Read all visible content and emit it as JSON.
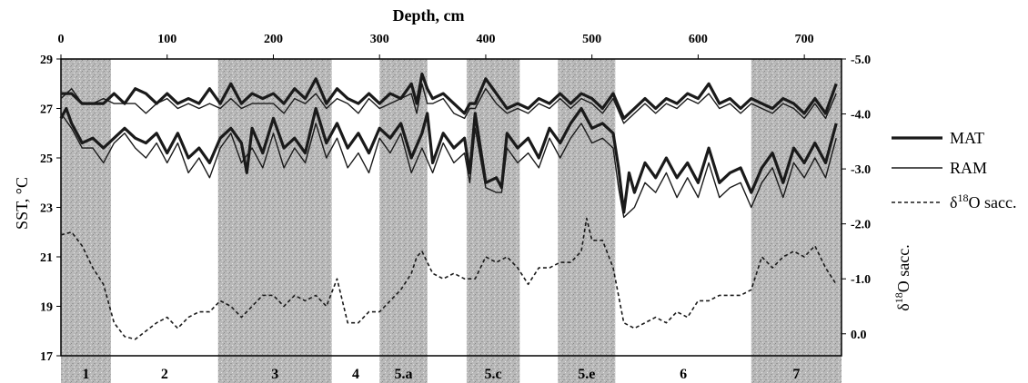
{
  "chart_data": {
    "type": "line",
    "title": "Depth, cm",
    "xlabel": "Depth, cm",
    "ylabel": "SST, °C",
    "ylabel_right": "δ18O sacc.",
    "xlim": [
      0,
      735
    ],
    "ylim": [
      17,
      29
    ],
    "ylim_right": [
      0.4,
      -5.0
    ],
    "x_ticks": [
      "0",
      "100",
      "200",
      "300",
      "400",
      "500",
      "600",
      "700"
    ],
    "y_ticks": [
      "17",
      "19",
      "21",
      "23",
      "25",
      "27",
      "29"
    ],
    "y_right_ticks": [
      "-5.0",
      "-4.0",
      "-3.0",
      "-2.0",
      "-1.0",
      "0.0"
    ],
    "legend": {
      "placement": "right",
      "entries": [
        "MAT",
        "RAM",
        "δ18O sacc."
      ]
    },
    "stages": [
      {
        "label": "1",
        "start": 0,
        "end": 47,
        "shaded": true
      },
      {
        "label": "2",
        "start": 47,
        "end": 148,
        "shaded": false
      },
      {
        "label": "3",
        "start": 148,
        "end": 255,
        "shaded": true
      },
      {
        "label": "4",
        "start": 255,
        "end": 300,
        "shaded": false
      },
      {
        "label": "5.a",
        "start": 300,
        "end": 345,
        "shaded": true
      },
      {
        "label": "5.c",
        "start": 382,
        "end": 432,
        "shaded": true
      },
      {
        "label": "5.e",
        "start": 468,
        "end": 522,
        "shaded": true
      },
      {
        "label": "6",
        "start": 522,
        "end": 650,
        "shaded": false
      },
      {
        "label": "7",
        "start": 650,
        "end": 735,
        "shaded": true
      }
    ],
    "series": [
      {
        "name": "MAT",
        "axis": "left",
        "style": "thick",
        "x": [
          0,
          10,
          20,
          30,
          40,
          50,
          60,
          70,
          80,
          90,
          100,
          110,
          120,
          130,
          140,
          150,
          160,
          170,
          180,
          190,
          200,
          210,
          220,
          230,
          240,
          250,
          260,
          270,
          280,
          290,
          300,
          310,
          320,
          330,
          335,
          340,
          345,
          350,
          360,
          370,
          380,
          385,
          390,
          400,
          410,
          420,
          430,
          440,
          450,
          460,
          470,
          480,
          490,
          500,
          510,
          520,
          530,
          540,
          550,
          560,
          570,
          580,
          590,
          600,
          610,
          620,
          630,
          640,
          650,
          660,
          670,
          680,
          690,
          700,
          710,
          720,
          730
        ],
        "y": [
          27.6,
          27.6,
          27.2,
          27.2,
          27.2,
          27.6,
          27.2,
          27.8,
          27.6,
          27.2,
          27.6,
          27.2,
          27.4,
          27.2,
          27.8,
          27.2,
          28.0,
          27.2,
          27.6,
          27.4,
          27.6,
          27.2,
          27.8,
          27.4,
          28.2,
          27.2,
          27.8,
          27.4,
          27.2,
          27.6,
          27.2,
          27.6,
          27.4,
          28.0,
          27.2,
          28.4,
          27.8,
          27.4,
          27.6,
          27.2,
          26.8,
          27.2,
          27.2,
          28.2,
          27.6,
          27.0,
          27.2,
          27.0,
          27.4,
          27.2,
          27.6,
          27.2,
          27.6,
          27.4,
          27.0,
          27.6,
          26.6,
          27.0,
          27.4,
          27.0,
          27.4,
          27.2,
          27.6,
          27.4,
          28.0,
          27.2,
          27.4,
          27.0,
          27.4,
          27.2,
          27.0,
          27.4,
          27.2,
          26.8,
          27.4,
          26.8,
          28.0
        ]
      },
      {
        "name": "RAM",
        "axis": "left",
        "style": "thin",
        "x": [
          0,
          10,
          20,
          30,
          40,
          50,
          60,
          70,
          80,
          90,
          100,
          110,
          120,
          130,
          140,
          150,
          160,
          170,
          180,
          190,
          200,
          210,
          220,
          230,
          240,
          250,
          260,
          270,
          280,
          290,
          300,
          310,
          320,
          330,
          335,
          340,
          345,
          350,
          360,
          370,
          380,
          385,
          390,
          400,
          410,
          420,
          430,
          440,
          450,
          460,
          470,
          480,
          490,
          500,
          510,
          520,
          530,
          540,
          550,
          560,
          570,
          580,
          590,
          600,
          610,
          620,
          630,
          640,
          650,
          660,
          670,
          680,
          690,
          700,
          710,
          720,
          730
        ],
        "y": [
          27.4,
          27.8,
          27.2,
          27.2,
          27.4,
          27.2,
          27.2,
          27.2,
          26.8,
          27.2,
          27.4,
          27.0,
          27.2,
          27.0,
          27.2,
          27.0,
          27.4,
          27.0,
          27.2,
          27.2,
          27.2,
          26.8,
          27.4,
          27.2,
          27.6,
          27.0,
          27.4,
          27.2,
          26.8,
          27.4,
          27.0,
          27.2,
          27.4,
          27.6,
          26.8,
          28.0,
          27.2,
          27.2,
          27.4,
          26.8,
          26.6,
          27.0,
          27.0,
          27.8,
          27.2,
          26.8,
          27.0,
          26.8,
          27.2,
          27.0,
          27.4,
          27.0,
          27.4,
          27.2,
          26.8,
          27.4,
          26.4,
          26.8,
          27.2,
          26.8,
          27.2,
          27.0,
          27.4,
          27.2,
          27.6,
          27.0,
          27.2,
          26.8,
          27.2,
          27.0,
          26.8,
          27.2,
          27.0,
          26.6,
          27.2,
          26.6,
          27.6
        ]
      },
      {
        "name": "MAT",
        "axis": "left",
        "style": "thick",
        "x": [
          0,
          5,
          10,
          20,
          30,
          40,
          50,
          60,
          70,
          80,
          90,
          100,
          110,
          120,
          130,
          140,
          150,
          160,
          170,
          175,
          180,
          190,
          200,
          210,
          220,
          230,
          240,
          250,
          260,
          270,
          280,
          290,
          300,
          310,
          320,
          330,
          340,
          345,
          350,
          360,
          370,
          380,
          385,
          390,
          400,
          410,
          415,
          420,
          430,
          440,
          450,
          460,
          470,
          480,
          490,
          500,
          510,
          520,
          525,
          530,
          535,
          540,
          550,
          560,
          570,
          580,
          590,
          600,
          610,
          620,
          630,
          640,
          650,
          660,
          670,
          680,
          690,
          700,
          710,
          720,
          730
        ],
        "y": [
          26.6,
          27.0,
          26.4,
          25.6,
          25.8,
          25.4,
          25.8,
          26.2,
          25.8,
          25.6,
          26.0,
          25.2,
          26.0,
          25.0,
          25.4,
          24.8,
          25.8,
          26.2,
          25.6,
          24.4,
          26.2,
          25.2,
          26.6,
          25.4,
          25.8,
          25.2,
          27.0,
          25.6,
          26.4,
          25.4,
          26.0,
          25.2,
          26.2,
          25.8,
          26.4,
          25.0,
          26.0,
          26.8,
          24.8,
          26.0,
          25.4,
          25.8,
          24.4,
          26.8,
          24.0,
          24.2,
          23.8,
          26.0,
          25.4,
          25.8,
          25.0,
          26.2,
          25.6,
          26.4,
          27.0,
          26.2,
          26.4,
          26.0,
          24.6,
          22.8,
          24.4,
          23.6,
          24.8,
          24.2,
          25.0,
          24.2,
          24.8,
          24.0,
          25.4,
          24.0,
          24.4,
          24.6,
          23.6,
          24.6,
          25.2,
          24.0,
          25.4,
          24.8,
          25.6,
          24.8,
          26.4
        ]
      },
      {
        "name": "RAM",
        "axis": "left",
        "style": "thin",
        "x": [
          0,
          10,
          20,
          30,
          40,
          50,
          60,
          70,
          80,
          90,
          100,
          110,
          120,
          130,
          140,
          150,
          160,
          170,
          180,
          190,
          200,
          210,
          220,
          230,
          240,
          250,
          260,
          270,
          280,
          290,
          300,
          310,
          320,
          330,
          340,
          350,
          360,
          370,
          380,
          385,
          390,
          400,
          410,
          415,
          420,
          430,
          440,
          450,
          460,
          470,
          480,
          490,
          500,
          510,
          520,
          525,
          530,
          540,
          550,
          560,
          570,
          580,
          590,
          600,
          610,
          620,
          630,
          640,
          650,
          660,
          670,
          680,
          690,
          700,
          710,
          720,
          730
        ],
        "y": [
          26.8,
          26.2,
          25.4,
          25.4,
          24.8,
          25.6,
          26.0,
          25.4,
          25.0,
          25.6,
          24.8,
          25.6,
          24.4,
          25.0,
          24.2,
          25.4,
          26.0,
          24.8,
          25.4,
          24.6,
          26.0,
          24.6,
          25.4,
          24.8,
          26.4,
          25.0,
          25.8,
          24.6,
          25.2,
          24.4,
          25.8,
          25.2,
          26.0,
          24.4,
          25.4,
          24.4,
          25.6,
          24.8,
          25.2,
          24.0,
          26.2,
          23.8,
          23.6,
          23.6,
          25.4,
          24.8,
          25.2,
          24.6,
          25.8,
          25.0,
          25.8,
          26.4,
          25.6,
          25.8,
          25.4,
          23.8,
          22.6,
          23.0,
          24.0,
          23.6,
          24.4,
          23.4,
          24.2,
          23.4,
          24.8,
          23.4,
          23.8,
          24.0,
          23.0,
          24.0,
          24.6,
          23.4,
          24.8,
          24.2,
          25.0,
          24.2,
          25.8
        ]
      },
      {
        "name": "δ18O sacc.",
        "axis": "right",
        "style": "dashed",
        "x": [
          0,
          10,
          20,
          30,
          40,
          50,
          60,
          70,
          80,
          90,
          100,
          110,
          120,
          130,
          140,
          150,
          160,
          170,
          180,
          190,
          200,
          210,
          220,
          230,
          240,
          250,
          260,
          270,
          280,
          290,
          300,
          310,
          320,
          330,
          335,
          340,
          345,
          350,
          360,
          370,
          380,
          390,
          400,
          410,
          420,
          430,
          440,
          450,
          460,
          470,
          480,
          490,
          495,
          500,
          510,
          520,
          530,
          540,
          550,
          560,
          570,
          580,
          590,
          600,
          610,
          620,
          630,
          640,
          650,
          660,
          670,
          680,
          690,
          700,
          710,
          720,
          730
        ],
        "y": [
          -1.8,
          -1.85,
          -1.6,
          -1.2,
          -0.9,
          -0.2,
          0.05,
          0.1,
          -0.05,
          -0.2,
          -0.3,
          -0.1,
          -0.3,
          -0.4,
          -0.4,
          -0.6,
          -0.5,
          -0.3,
          -0.5,
          -0.7,
          -0.7,
          -0.5,
          -0.7,
          -0.6,
          -0.7,
          -0.5,
          -1.0,
          -0.2,
          -0.2,
          -0.4,
          -0.4,
          -0.6,
          -0.8,
          -1.1,
          -1.4,
          -1.5,
          -1.3,
          -1.1,
          -1.0,
          -1.1,
          -1.0,
          -1.0,
          -1.4,
          -1.3,
          -1.4,
          -1.2,
          -0.9,
          -1.2,
          -1.2,
          -1.3,
          -1.3,
          -1.5,
          -2.1,
          -1.7,
          -1.7,
          -1.2,
          -0.2,
          -0.1,
          -0.2,
          -0.3,
          -0.2,
          -0.4,
          -0.3,
          -0.6,
          -0.6,
          -0.7,
          -0.7,
          -0.7,
          -0.8,
          -1.4,
          -1.2,
          -1.4,
          -1.5,
          -1.4,
          -1.6,
          -1.2,
          -0.9
        ]
      }
    ]
  }
}
